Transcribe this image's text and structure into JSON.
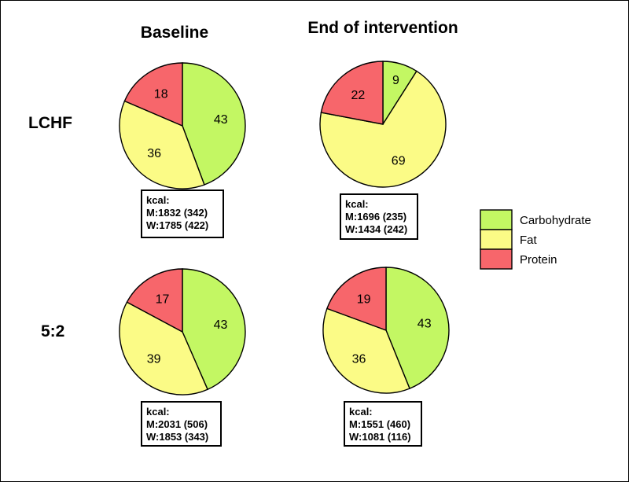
{
  "column_headers": [
    "Baseline",
    "End of intervention"
  ],
  "row_labels": [
    "LCHF",
    "5:2"
  ],
  "colors": {
    "Carbohydrate": "#c3f763",
    "Fat": "#fbfb86",
    "Protein": "#f7666b"
  },
  "legend": [
    "Carbohydrate",
    "Fat",
    "Protein"
  ],
  "chart_data": [
    {
      "type": "pie",
      "row": "LCHF",
      "column": "Baseline",
      "slices": [
        {
          "category": "Carbohydrate",
          "value": 43
        },
        {
          "category": "Fat",
          "value": 36
        },
        {
          "category": "Protein",
          "value": 18
        }
      ],
      "kcal_title": "kcal:",
      "kcal_lines": [
        "M:1832 (342)",
        "W:1785 (422)"
      ]
    },
    {
      "type": "pie",
      "row": "LCHF",
      "column": "End of intervention",
      "slices": [
        {
          "category": "Carbohydrate",
          "value": 9
        },
        {
          "category": "Fat",
          "value": 69
        },
        {
          "category": "Protein",
          "value": 22
        }
      ],
      "kcal_title": "kcal:",
      "kcal_lines": [
        "M:1696 (235)",
        "W:1434 (242)"
      ]
    },
    {
      "type": "pie",
      "row": "5:2",
      "column": "Baseline",
      "slices": [
        {
          "category": "Carbohydrate",
          "value": 43
        },
        {
          "category": "Fat",
          "value": 39
        },
        {
          "category": "Protein",
          "value": 17
        }
      ],
      "kcal_title": "kcal:",
      "kcal_lines": [
        "M:2031 (506)",
        "W:1853 (343)"
      ]
    },
    {
      "type": "pie",
      "row": "5:2",
      "column": "End of intervention",
      "slices": [
        {
          "category": "Carbohydrate",
          "value": 43
        },
        {
          "category": "Fat",
          "value": 36
        },
        {
          "category": "Protein",
          "value": 19
        }
      ],
      "kcal_title": "kcal:",
      "kcal_lines": [
        "M:1551 (460)",
        "W:1081 (116)"
      ]
    }
  ]
}
